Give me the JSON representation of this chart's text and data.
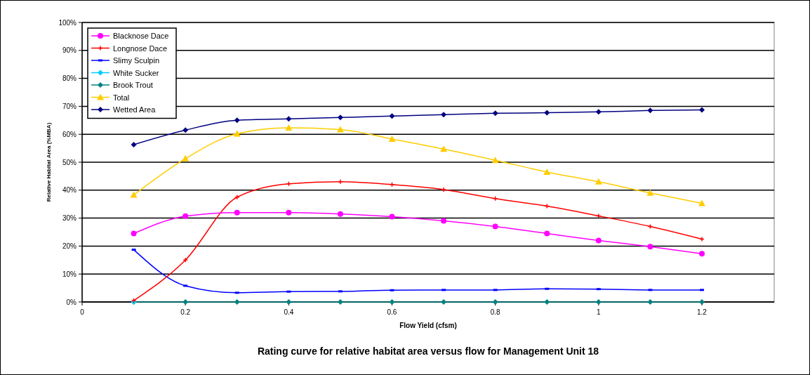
{
  "chart_data": {
    "type": "line",
    "title": "Rating curve for relative habitat area versus flow for Management Unit 18",
    "xlabel": "Flow Yield (cfsm)",
    "ylabel": "Relative Habitat Area (%MBA)",
    "x": [
      0.1,
      0.2,
      0.3,
      0.4,
      0.5,
      0.6,
      0.7,
      0.8,
      0.9,
      1.0,
      1.1,
      1.2
    ],
    "xlim": [
      0,
      1.34
    ],
    "xticks": [
      0,
      0.2,
      0.4,
      0.6,
      0.8,
      1,
      1.2
    ],
    "ylim": [
      0,
      100
    ],
    "yticks": [
      {
        "value": 0,
        "label": "0%"
      },
      {
        "value": 10,
        "label": "10%"
      },
      {
        "value": 20,
        "label": "20%"
      },
      {
        "value": 30,
        "label": "30%"
      },
      {
        "value": 40,
        "label": "40%"
      },
      {
        "value": 50,
        "label": "50%"
      },
      {
        "value": 60,
        "label": "60%"
      },
      {
        "value": 70,
        "label": "70%"
      },
      {
        "value": 80,
        "label": "80%"
      },
      {
        "value": 90,
        "label": "90%"
      },
      {
        "value": 100,
        "label": "100%"
      }
    ],
    "grid": "y",
    "legend": "top left",
    "series": [
      {
        "name": "Blacknose Dace",
        "color": "#ff00ff",
        "marker": "circle",
        "values": [
          24.5,
          30.7,
          32,
          32,
          31.5,
          30.5,
          29,
          27,
          24.5,
          22,
          19.8,
          17.3
        ]
      },
      {
        "name": "Longnose Dace",
        "color": "#ff0000",
        "marker": "cross",
        "values": [
          0.5,
          15,
          37.5,
          42.3,
          43,
          42,
          40.2,
          37,
          34.3,
          30.8,
          27,
          22.5
        ]
      },
      {
        "name": "Slimy Sculpin",
        "color": "#0000ff",
        "marker": "square",
        "values": [
          18.7,
          5.8,
          3.3,
          3.7,
          3.8,
          4.2,
          4.3,
          4.3,
          4.7,
          4.6,
          4.3,
          4.3
        ]
      },
      {
        "name": "White Sucker",
        "color": "#00ccff",
        "marker": "diamond",
        "values": [
          0,
          null,
          null,
          null,
          null,
          null,
          null,
          null,
          null,
          null,
          null,
          null
        ]
      },
      {
        "name": "Brook Trout",
        "color": "#008080",
        "marker": "diamond",
        "values": [
          0,
          0,
          0,
          0,
          0,
          0,
          0,
          0,
          0,
          0,
          0,
          0
        ]
      },
      {
        "name": "Total",
        "color": "#ffcc00",
        "marker": "triangle",
        "values": [
          38.3,
          51.3,
          60.2,
          62.3,
          61.7,
          58.3,
          54.7,
          50.7,
          46.5,
          43,
          39,
          35.3
        ]
      },
      {
        "name": "Wetted Area",
        "color": "#000080",
        "marker": "diamond",
        "values": [
          56.3,
          61.5,
          65,
          65.5,
          66,
          66.5,
          67,
          67.5,
          67.7,
          68,
          68.5,
          68.7
        ]
      }
    ]
  }
}
